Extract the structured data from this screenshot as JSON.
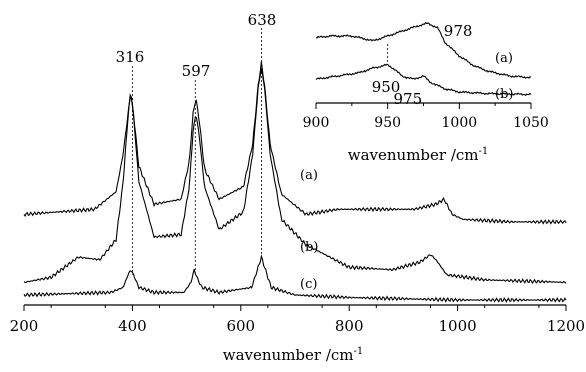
{
  "chart_data": [
    {
      "type": "line",
      "xlabel": "wavenumber /cm",
      "xlabel_superscript": "-1",
      "xlim": [
        200,
        1200
      ],
      "xticks": [
        "200",
        "400",
        "600",
        "800",
        "1000",
        "1200"
      ],
      "grid": false,
      "y_axis_shown": false,
      "series": [
        {
          "name": "(a)",
          "x": [
            200,
            330,
            370,
            383,
            392,
            397,
            402,
            412,
            440,
            490,
            505,
            512,
            517,
            523,
            533,
            560,
            605,
            622,
            632,
            638,
            644,
            654,
            675,
            720,
            780,
            850,
            920,
            960,
            975,
            990,
            1010,
            1100,
            1200
          ],
          "y": [
            0.34,
            0.36,
            0.43,
            0.58,
            0.74,
            0.82,
            0.74,
            0.53,
            0.38,
            0.4,
            0.55,
            0.74,
            0.8,
            0.72,
            0.52,
            0.4,
            0.45,
            0.62,
            0.85,
            0.94,
            0.85,
            0.62,
            0.42,
            0.34,
            0.36,
            0.36,
            0.36,
            0.38,
            0.4,
            0.34,
            0.32,
            0.31,
            0.31
          ]
        },
        {
          "name": "(b)",
          "x": [
            200,
            250,
            300,
            340,
            370,
            383,
            392,
            397,
            402,
            412,
            440,
            490,
            505,
            512,
            517,
            523,
            533,
            560,
            605,
            622,
            632,
            638,
            644,
            654,
            675,
            720,
            800,
            880,
            930,
            950,
            960,
            980,
            1050,
            1200
          ],
          "y": [
            0.07,
            0.09,
            0.17,
            0.16,
            0.24,
            0.47,
            0.73,
            0.83,
            0.73,
            0.47,
            0.25,
            0.26,
            0.45,
            0.67,
            0.74,
            0.66,
            0.45,
            0.28,
            0.35,
            0.58,
            0.84,
            0.92,
            0.84,
            0.58,
            0.32,
            0.22,
            0.13,
            0.12,
            0.15,
            0.18,
            0.16,
            0.1,
            0.08,
            0.07
          ]
        },
        {
          "name": "(c)",
          "x": [
            200,
            360,
            383,
            392,
            397,
            402,
            412,
            440,
            495,
            508,
            514,
            519,
            528,
            560,
            620,
            632,
            638,
            644,
            656,
            700,
            800,
            1000,
            1200
          ],
          "y": [
            0.02,
            0.03,
            0.05,
            0.1,
            0.12,
            0.1,
            0.05,
            0.03,
            0.03,
            0.07,
            0.12,
            0.09,
            0.05,
            0.03,
            0.05,
            0.13,
            0.17,
            0.13,
            0.05,
            0.02,
            0.01,
            0.0,
            0.0
          ]
        }
      ],
      "annotations": [
        {
          "text": "316",
          "x": 400
        },
        {
          "text": "597",
          "x": 516
        },
        {
          "text": "638",
          "x": 638
        }
      ]
    },
    {
      "type": "line",
      "xlabel": "wavenumber /cm",
      "xlabel_superscript": "-1",
      "xlim": [
        900,
        1050
      ],
      "xticks": [
        "900",
        "950",
        "1000",
        "1050"
      ],
      "grid": false,
      "y_axis_shown": false,
      "series": [
        {
          "name": "(a)",
          "x": [
            900,
            910,
            925,
            940,
            950,
            960,
            970,
            978,
            985,
            990,
            1000,
            1010,
            1020,
            1035,
            1050
          ],
          "y": [
            0.78,
            0.8,
            0.8,
            0.74,
            0.8,
            0.86,
            0.92,
            0.96,
            0.9,
            0.72,
            0.55,
            0.43,
            0.36,
            0.3,
            0.28
          ]
        },
        {
          "name": "(b)",
          "x": [
            900,
            915,
            930,
            940,
            950,
            955,
            960,
            968,
            975,
            980,
            990,
            1000,
            1020,
            1050
          ],
          "y": [
            0.26,
            0.3,
            0.34,
            0.4,
            0.44,
            0.38,
            0.3,
            0.26,
            0.3,
            0.22,
            0.14,
            0.1,
            0.08,
            0.07
          ]
        }
      ],
      "annotations": [
        {
          "text": "978",
          "x": 978
        },
        {
          "text": "950",
          "x": 950
        },
        {
          "text": "975",
          "x": 975
        }
      ]
    }
  ]
}
